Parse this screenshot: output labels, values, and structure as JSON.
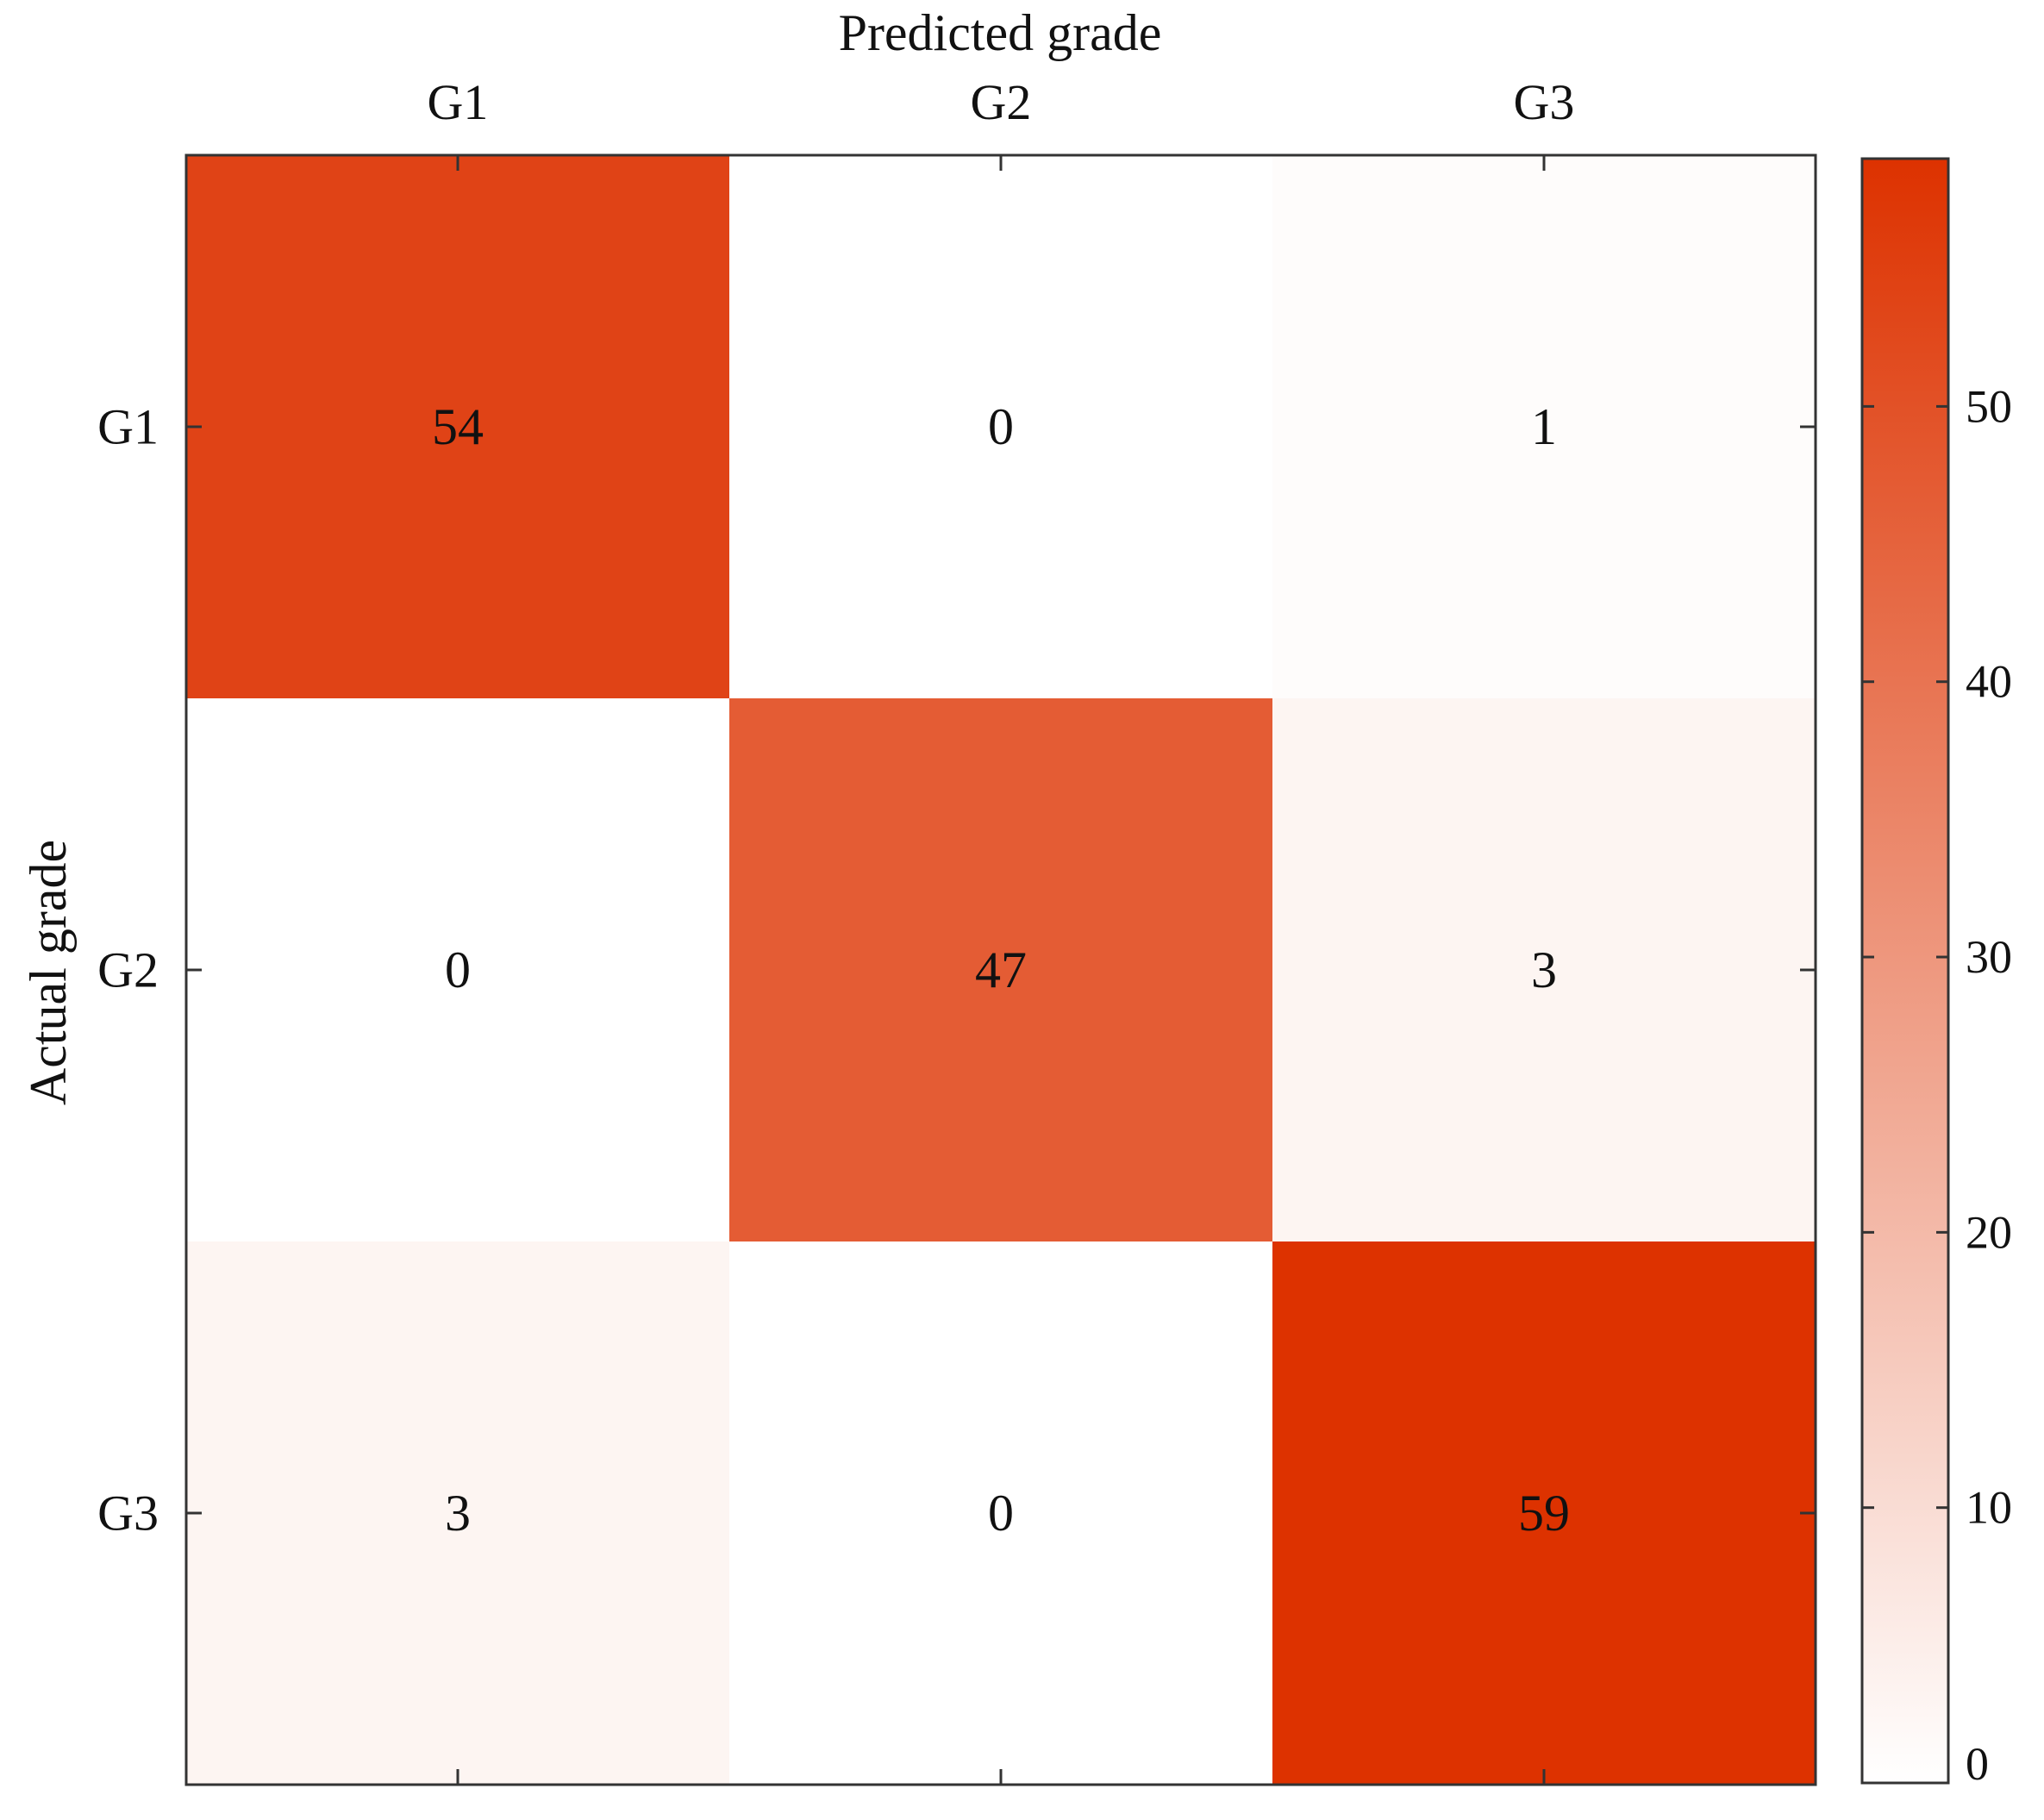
{
  "chart_data": {
    "type": "heatmap",
    "xlabel": "Predicted grade",
    "ylabel": "Actual grade",
    "x_categories": [
      "G1",
      "G2",
      "G3"
    ],
    "y_categories": [
      "G1",
      "G2",
      "G3"
    ],
    "values": [
      [
        54,
        0,
        1
      ],
      [
        0,
        47,
        3
      ],
      [
        3,
        0,
        59
      ]
    ],
    "colorbar": {
      "range": [
        0,
        59
      ],
      "ticks": [
        0,
        10,
        20,
        30,
        40,
        50
      ],
      "color_low": "#ffffff",
      "color_high": "#dd3200",
      "placement": "right"
    },
    "x_axis_position": "top"
  }
}
